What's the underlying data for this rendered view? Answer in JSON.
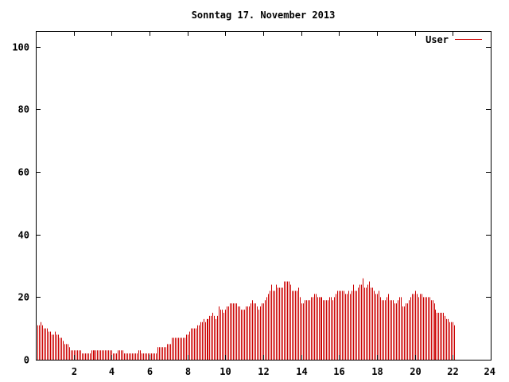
{
  "chart_data": {
    "type": "bar",
    "title": "Sonntag 17. November 2013",
    "xlabel": "",
    "ylabel": "",
    "xlim": [
      0,
      24
    ],
    "ylim": [
      0,
      105
    ],
    "x_ticks": [
      2,
      4,
      6,
      8,
      10,
      12,
      14,
      16,
      18,
      20,
      22,
      24
    ],
    "y_ticks": [
      0,
      20,
      40,
      60,
      80,
      100
    ],
    "grid": false,
    "legend_position": "top-right",
    "interval_minutes": 5,
    "series": [
      {
        "name": "User",
        "color": "#cc0000",
        "values": [
          11,
          11,
          11,
          12,
          11,
          10,
          10,
          10,
          9,
          9,
          8,
          8,
          9,
          8,
          8,
          7,
          7,
          6,
          5,
          5,
          5,
          4,
          3,
          3,
          3,
          3,
          3,
          3,
          3,
          2,
          2,
          2,
          2,
          2,
          2,
          3,
          3,
          3,
          3,
          3,
          3,
          3,
          3,
          3,
          3,
          3,
          3,
          3,
          3,
          2,
          2,
          2,
          3,
          3,
          3,
          3,
          2,
          2,
          2,
          2,
          2,
          2,
          2,
          2,
          2,
          3,
          3,
          2,
          2,
          2,
          2,
          2,
          2,
          2,
          2,
          2,
          2,
          4,
          4,
          4,
          4,
          4,
          4,
          5,
          5,
          5,
          7,
          7,
          7,
          7,
          7,
          7,
          7,
          7,
          7,
          8,
          8,
          9,
          10,
          10,
          10,
          10,
          11,
          11,
          12,
          12,
          13,
          12,
          13,
          13,
          14,
          14,
          15,
          14,
          13,
          14,
          17,
          16,
          16,
          15,
          16,
          17,
          17,
          18,
          18,
          18,
          18,
          18,
          17,
          17,
          16,
          16,
          16,
          17,
          17,
          17,
          18,
          19,
          18,
          18,
          17,
          16,
          17,
          18,
          18,
          19,
          20,
          21,
          22,
          24,
          22,
          22,
          24,
          23,
          23,
          23,
          23,
          25,
          25,
          25,
          25,
          24,
          22,
          22,
          22,
          22,
          23,
          20,
          18,
          18,
          19,
          19,
          19,
          19,
          20,
          20,
          21,
          21,
          20,
          20,
          20,
          20,
          19,
          19,
          19,
          19,
          20,
          20,
          19,
          20,
          21,
          22,
          22,
          22,
          22,
          22,
          21,
          21,
          22,
          21,
          22,
          24,
          22,
          22,
          23,
          24,
          24,
          26,
          23,
          23,
          24,
          25,
          23,
          23,
          22,
          21,
          21,
          22,
          20,
          19,
          19,
          19,
          20,
          21,
          19,
          19,
          19,
          18,
          18,
          19,
          20,
          20,
          17,
          17,
          18,
          18,
          19,
          20,
          21,
          21,
          22,
          21,
          20,
          21,
          21,
          20,
          20,
          20,
          20,
          20,
          19,
          19,
          18,
          16,
          15,
          15,
          15,
          15,
          15,
          14,
          13,
          13,
          12,
          12,
          12,
          11
        ]
      }
    ]
  }
}
